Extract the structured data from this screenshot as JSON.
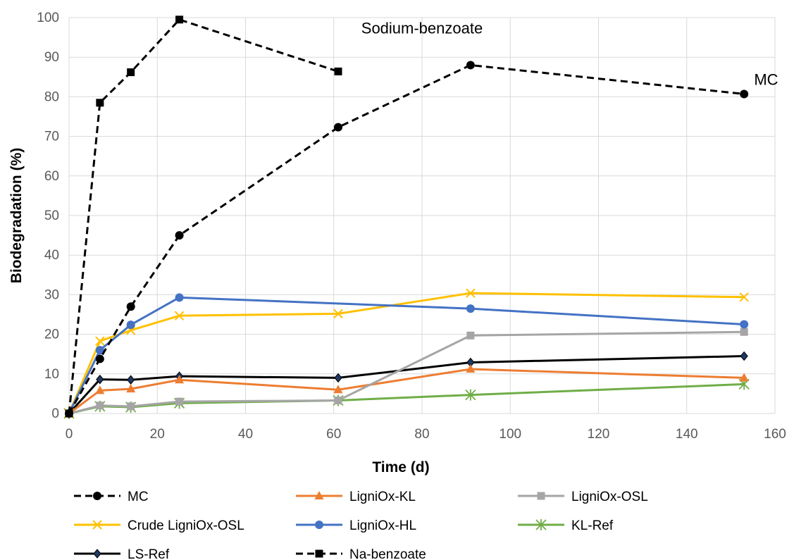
{
  "chart_data": {
    "type": "line",
    "title": "",
    "xlabel": "Time (d)",
    "ylabel": "Biodegradation (%)",
    "xlim": [
      0,
      160
    ],
    "ylim": [
      0,
      100
    ],
    "xticks": [
      0,
      20,
      40,
      60,
      80,
      100,
      120,
      140,
      160
    ],
    "yticks": [
      0,
      10,
      20,
      30,
      40,
      50,
      60,
      70,
      80,
      90,
      100
    ],
    "grid": "vertical and horizontal major gridlines",
    "legend_position": "bottom",
    "annotations": [
      {
        "text": "Sodium-benzoate",
        "x": 80,
        "y": 96
      },
      {
        "text": "MC",
        "x": 158,
        "y": 83
      }
    ],
    "series": [
      {
        "name": "MC",
        "color": "#000000",
        "line_style": "dashed",
        "marker": "circle",
        "points": [
          [
            0,
            0
          ],
          [
            7,
            13.8
          ],
          [
            14,
            27
          ],
          [
            25,
            45
          ],
          [
            61,
            72.3
          ],
          [
            91,
            88
          ],
          [
            153,
            80.7
          ]
        ]
      },
      {
        "name": "LigniOx-KL",
        "color": "#ED7D31",
        "line_style": "solid",
        "marker": "triangle",
        "points": [
          [
            0,
            0
          ],
          [
            7,
            5.8
          ],
          [
            14,
            6.2
          ],
          [
            25,
            8.5
          ],
          [
            61,
            6
          ],
          [
            91,
            11.2
          ],
          [
            153,
            9
          ]
        ]
      },
      {
        "name": "LigniOx-OSL",
        "color": "#A5A5A5",
        "line_style": "solid",
        "marker": "square",
        "points": [
          [
            0,
            0
          ],
          [
            7,
            2
          ],
          [
            14,
            1.8
          ],
          [
            25,
            3
          ],
          [
            61,
            3.3
          ],
          [
            91,
            19.7
          ],
          [
            153,
            20.6
          ]
        ]
      },
      {
        "name": "Crude LigniOx-OSL",
        "color": "#FFC000",
        "line_style": "solid",
        "marker": "x",
        "points": [
          [
            0,
            0
          ],
          [
            7,
            18.3
          ],
          [
            14,
            21
          ],
          [
            25,
            24.7
          ],
          [
            61,
            25.2
          ],
          [
            91,
            30.4
          ],
          [
            153,
            29.4
          ]
        ]
      },
      {
        "name": "LigniOx-HL",
        "color": "#4472C4",
        "line_style": "solid",
        "marker": "circle",
        "points": [
          [
            0,
            0
          ],
          [
            7,
            16
          ],
          [
            14,
            22.4
          ],
          [
            25,
            29.3
          ],
          [
            91,
            26.5
          ],
          [
            153,
            22.5
          ]
        ]
      },
      {
        "name": "KL-Ref",
        "color": "#70AD47",
        "line_style": "solid",
        "marker": "asterisk",
        "points": [
          [
            0,
            0
          ],
          [
            7,
            1.8
          ],
          [
            14,
            1.6
          ],
          [
            25,
            2.6
          ],
          [
            61,
            3.3
          ],
          [
            91,
            4.7
          ],
          [
            153,
            7.4
          ]
        ]
      },
      {
        "name": "LS-Ref",
        "color": "#000000",
        "line_style": "solid",
        "marker": "diamond",
        "points": [
          [
            0,
            0
          ],
          [
            7,
            8.6
          ],
          [
            14,
            8.5
          ],
          [
            25,
            9.4
          ],
          [
            61,
            9
          ],
          [
            91,
            12.9
          ],
          [
            153,
            14.5
          ]
        ]
      },
      {
        "name": "Na-benzoate",
        "color": "#000000",
        "line_style": "dashed",
        "marker": "square",
        "points": [
          [
            0,
            0
          ],
          [
            7,
            78.5
          ],
          [
            14,
            86.2
          ],
          [
            25,
            99.5
          ],
          [
            61,
            86.4
          ]
        ]
      }
    ]
  }
}
